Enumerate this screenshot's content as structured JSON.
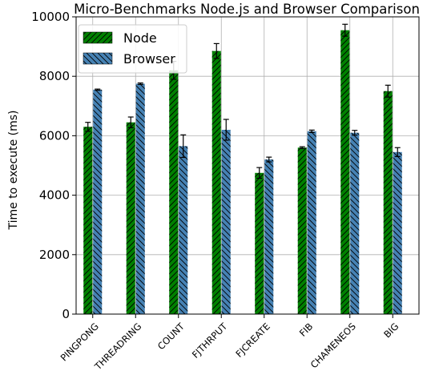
{
  "chart_data": {
    "type": "bar",
    "title": "Micro-Benchmarks Node.js and Browser Comparison",
    "xlabel": "",
    "ylabel": "Time to execute (ms)",
    "ylim": [
      0,
      10000
    ],
    "yticks": [
      0,
      2000,
      4000,
      6000,
      8000,
      10000
    ],
    "grid": true,
    "legend_position": "top-left",
    "categories": [
      "PINGPONG",
      "THREADRING",
      "COUNT",
      "FJTHRPUT",
      "FJCREATE",
      "FIB",
      "CHAMENEOS",
      "BIG"
    ],
    "series": [
      {
        "name": "Node",
        "color": "#008000",
        "hatch": "forward-diagonal",
        "values": [
          6300,
          6450,
          8200,
          8850,
          4750,
          5600,
          9550,
          7500
        ],
        "errors": [
          150,
          180,
          300,
          250,
          180,
          30,
          200,
          200
        ]
      },
      {
        "name": "Browser",
        "color": "#4682b4",
        "hatch": "back-diagonal",
        "values": [
          7550,
          7750,
          5650,
          6200,
          5200,
          6150,
          6100,
          5450
        ],
        "errors": [
          20,
          25,
          380,
          350,
          80,
          40,
          80,
          150
        ]
      }
    ]
  }
}
